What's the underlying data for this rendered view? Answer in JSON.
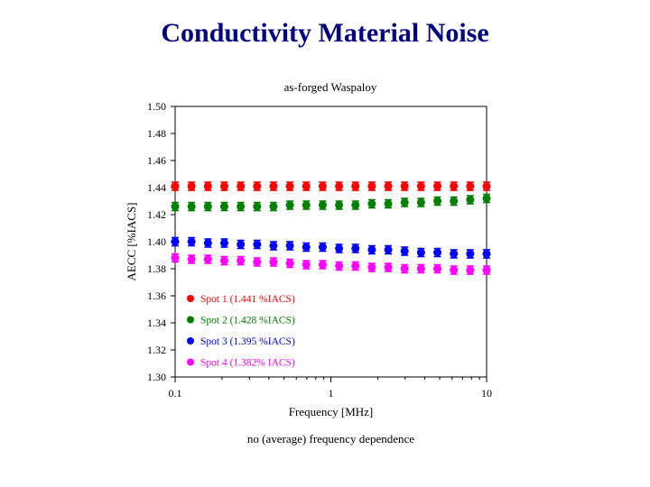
{
  "slide": {
    "title": "Conductivity Material Noise"
  },
  "chart_data": {
    "type": "scatter",
    "title": "as-forged Waspaloy",
    "xlabel": "Frequency [MHz]",
    "ylabel": "AECC [%IACS]",
    "xscale": "log",
    "xlim": [
      0.1,
      10
    ],
    "ylim": [
      1.3,
      1.5
    ],
    "x_ticks": [
      "0.1",
      "1",
      "10"
    ],
    "y_ticks": [
      "1.30",
      "1.32",
      "1.34",
      "1.36",
      "1.38",
      "1.40",
      "1.42",
      "1.44",
      "1.46",
      "1.48",
      "1.50"
    ],
    "error_bar": 0.003,
    "legend_position": "lower-left",
    "x": [
      0.1,
      0.1274,
      0.1624,
      0.2069,
      0.2637,
      0.336,
      0.4281,
      0.5456,
      0.6952,
      0.8859,
      1.1288,
      1.4384,
      1.833,
      2.3357,
      2.9764,
      3.7927,
      4.833,
      6.1585,
      7.8476,
      10.0
    ],
    "series": [
      {
        "name": "Spot 1 (1.441 %IACS)",
        "color": "#ff0000",
        "values": [
          1.441,
          1.441,
          1.441,
          1.441,
          1.441,
          1.441,
          1.441,
          1.441,
          1.441,
          1.441,
          1.441,
          1.441,
          1.441,
          1.441,
          1.441,
          1.441,
          1.441,
          1.441,
          1.441,
          1.441
        ]
      },
      {
        "name": "Spot 2 (1.428 %IACS)",
        "color": "#008000",
        "values": [
          1.426,
          1.426,
          1.426,
          1.426,
          1.426,
          1.426,
          1.426,
          1.427,
          1.427,
          1.427,
          1.427,
          1.427,
          1.428,
          1.428,
          1.429,
          1.429,
          1.43,
          1.43,
          1.431,
          1.432
        ]
      },
      {
        "name": "Spot 3 (1.395 %IACS)",
        "color": "#0000ff",
        "values": [
          1.4,
          1.4,
          1.399,
          1.399,
          1.398,
          1.398,
          1.397,
          1.397,
          1.396,
          1.396,
          1.395,
          1.395,
          1.394,
          1.394,
          1.393,
          1.392,
          1.392,
          1.391,
          1.391,
          1.391
        ]
      },
      {
        "name": "Spot 4 (1.382% IACS)",
        "color": "#ff00ff",
        "values": [
          1.388,
          1.387,
          1.387,
          1.386,
          1.386,
          1.385,
          1.385,
          1.384,
          1.383,
          1.383,
          1.382,
          1.382,
          1.381,
          1.381,
          1.38,
          1.38,
          1.38,
          1.379,
          1.379,
          1.379
        ]
      }
    ],
    "annotation": "no (average) frequency dependence"
  }
}
